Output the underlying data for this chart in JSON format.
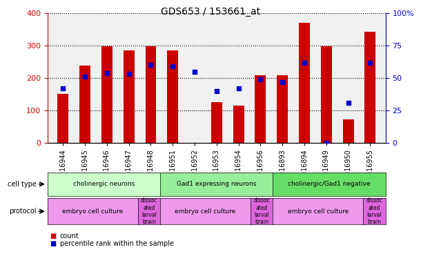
{
  "title": "GDS653 / 153661_at",
  "samples": [
    "GSM16944",
    "GSM16945",
    "GSM16946",
    "GSM16947",
    "GSM16948",
    "GSM16951",
    "GSM16952",
    "GSM16953",
    "GSM16954",
    "GSM16956",
    "GSM16893",
    "GSM16894",
    "GSM16949",
    "GSM16950",
    "GSM16955"
  ],
  "counts": [
    150,
    238,
    298,
    285,
    299,
    285,
    0,
    125,
    114,
    209,
    209,
    370,
    299,
    72,
    344
  ],
  "percentiles": [
    42,
    51,
    54,
    53,
    60,
    59,
    55,
    40,
    42,
    49,
    47,
    62,
    0,
    31,
    62
  ],
  "ylim_left": [
    0,
    400
  ],
  "ylim_right": [
    0,
    100
  ],
  "yticks_left": [
    0,
    100,
    200,
    300,
    400
  ],
  "yticks_right": [
    0,
    25,
    50,
    75,
    100
  ],
  "ytick_right_labels": [
    "0",
    "25",
    "50",
    "75",
    "100%"
  ],
  "bar_color": "#cc0000",
  "dot_color": "#0000cc",
  "bg_color": "#f0f0f0",
  "cell_type_groups": [
    {
      "label": "cholinergic neurons",
      "start": 0,
      "end": 5,
      "color": "#ccffcc"
    },
    {
      "label": "Gad1 expressing neurons",
      "start": 5,
      "end": 10,
      "color": "#99ee99"
    },
    {
      "label": "cholinergic/Gad1 negative",
      "start": 10,
      "end": 15,
      "color": "#66dd66"
    }
  ],
  "protocol_groups": [
    {
      "label": "embryo cell culture",
      "start": 0,
      "end": 4,
      "color": "#ee99ee"
    },
    {
      "label": "dissoc\nated\nlarval\nbrain",
      "start": 4,
      "end": 5,
      "color": "#dd66dd"
    },
    {
      "label": "embryo cell culture",
      "start": 5,
      "end": 9,
      "color": "#ee99ee"
    },
    {
      "label": "dissoc\nated\nlarval\nbrain",
      "start": 9,
      "end": 10,
      "color": "#dd66dd"
    },
    {
      "label": "embryo cell culture",
      "start": 10,
      "end": 14,
      "color": "#ee99ee"
    },
    {
      "label": "dissoc\nated\nlarval\nbrain",
      "start": 14,
      "end": 15,
      "color": "#dd66dd"
    }
  ],
  "left_axis_color": "#cc0000",
  "right_axis_color": "#0000cc",
  "bar_width": 0.5
}
